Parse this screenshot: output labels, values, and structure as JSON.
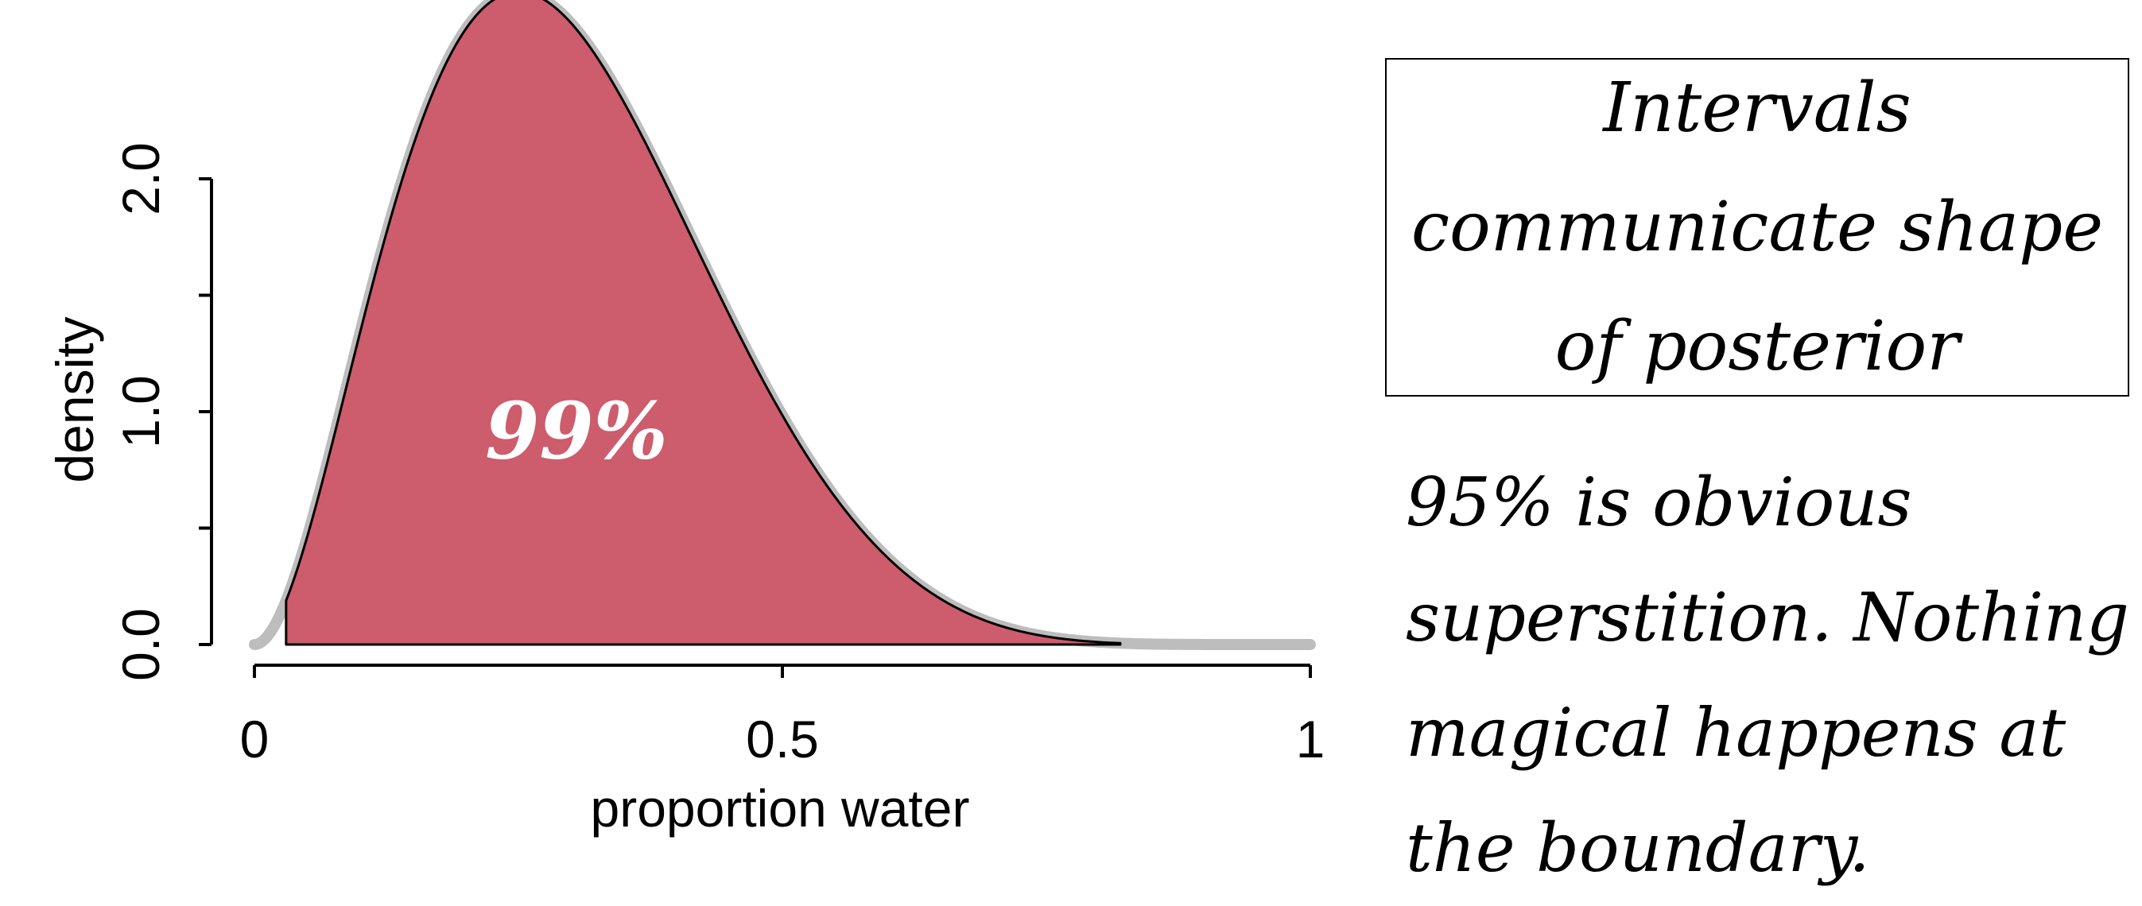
{
  "chart_data": {
    "type": "area",
    "xlabel": "proportion water",
    "ylabel": "density",
    "xlim": [
      0,
      1
    ],
    "ylim": [
      0,
      2.0
    ],
    "x_ticks": [
      {
        "value": 0,
        "label": "0"
      },
      {
        "value": 0.5,
        "label": "0.5"
      },
      {
        "value": 1,
        "label": "1"
      }
    ],
    "y_ticks": [
      {
        "value": 0,
        "label": "0.0"
      },
      {
        "value": 0.5,
        "label": ""
      },
      {
        "value": 1.0,
        "label": "1.0"
      },
      {
        "value": 1.5,
        "label": ""
      },
      {
        "value": 2.0,
        "label": "2.0"
      }
    ],
    "posterior": {
      "distribution": "beta",
      "alpha": 3,
      "beta": 7,
      "line_color": "#bdbdbd"
    },
    "shaded_interval": {
      "lower": 0.03,
      "upper": 0.82,
      "label": "99%",
      "fill_color": "#cd5c6c",
      "label_color": "#ffffff"
    }
  },
  "annotation": {
    "title_lines": [
      "Intervals",
      "communicate shape",
      "of posterior"
    ],
    "body_lines": [
      "95% is obvious",
      "superstition. Nothing",
      "magical happens at",
      "the boundary."
    ]
  }
}
